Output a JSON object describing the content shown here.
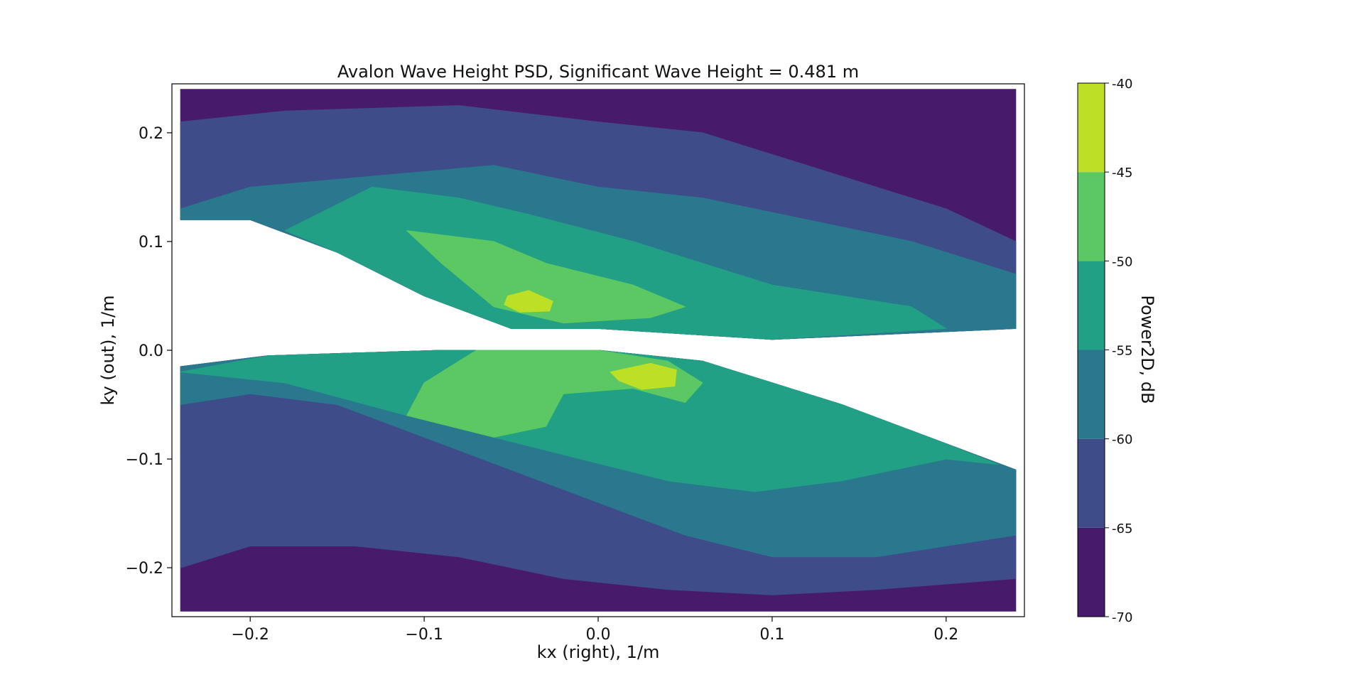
{
  "chart_data": {
    "type": "contourf",
    "title": "Avalon Wave Height PSD, Significant Wave Height = 0.481 m",
    "xlabel": "kx (right), 1/m",
    "ylabel": "ky (out), 1/m",
    "xlim": [
      -0.245,
      0.245
    ],
    "ylim": [
      -0.245,
      0.245
    ],
    "xticks": [
      -0.2,
      -0.1,
      0.0,
      0.1,
      0.2
    ],
    "xtick_labels": [
      "−0.2",
      "−0.1",
      "0.0",
      "0.1",
      "0.2"
    ],
    "yticks": [
      -0.2,
      -0.1,
      0.0,
      0.1,
      0.2
    ],
    "ytick_labels": [
      "−0.2",
      "−0.1",
      "0.0",
      "0.1",
      "0.2"
    ],
    "colorbar": {
      "label": "Power2D, dB",
      "levels": [
        -70,
        -65,
        -60,
        -55,
        -50,
        -45,
        -40
      ],
      "tick_labels": [
        "-70",
        "-65",
        "-60",
        "-55",
        "-50",
        "-45",
        "-40"
      ],
      "colors": [
        "#481a6c",
        "#3e4c8a",
        "#2a788e",
        "#22a085",
        "#5cc863",
        "#bddf26"
      ]
    },
    "regions": [
      {
        "name": "upper-lobe",
        "level": -70,
        "points": [
          [
            -0.24,
            0.24
          ],
          [
            0.24,
            0.24
          ],
          [
            0.24,
            0.02
          ],
          [
            0.1,
            0.01
          ],
          [
            0.0,
            0.02
          ],
          [
            -0.05,
            0.02
          ],
          [
            -0.1,
            0.05
          ],
          [
            -0.15,
            0.09
          ],
          [
            -0.2,
            0.12
          ],
          [
            -0.24,
            0.12
          ]
        ]
      },
      {
        "name": "upper-lobe",
        "level": -65,
        "points": [
          [
            -0.24,
            0.21
          ],
          [
            -0.18,
            0.22
          ],
          [
            -0.08,
            0.225
          ],
          [
            0.0,
            0.21
          ],
          [
            0.06,
            0.2
          ],
          [
            0.1,
            0.18
          ],
          [
            0.14,
            0.16
          ],
          [
            0.2,
            0.13
          ],
          [
            0.24,
            0.1
          ],
          [
            0.24,
            0.02
          ],
          [
            0.1,
            0.01
          ],
          [
            0.0,
            0.02
          ],
          [
            -0.05,
            0.02
          ],
          [
            -0.1,
            0.05
          ],
          [
            -0.15,
            0.09
          ],
          [
            -0.2,
            0.12
          ],
          [
            -0.24,
            0.12
          ]
        ]
      },
      {
        "name": "upper-lobe",
        "level": -60,
        "points": [
          [
            -0.24,
            0.13
          ],
          [
            -0.2,
            0.15
          ],
          [
            -0.13,
            0.16
          ],
          [
            -0.06,
            0.17
          ],
          [
            0.0,
            0.15
          ],
          [
            0.06,
            0.14
          ],
          [
            0.12,
            0.12
          ],
          [
            0.18,
            0.1
          ],
          [
            0.24,
            0.07
          ],
          [
            0.24,
            0.02
          ],
          [
            0.1,
            0.01
          ],
          [
            0.0,
            0.02
          ],
          [
            -0.05,
            0.02
          ],
          [
            -0.1,
            0.05
          ],
          [
            -0.15,
            0.09
          ],
          [
            -0.2,
            0.12
          ],
          [
            -0.24,
            0.12
          ]
        ]
      },
      {
        "name": "upper-lobe",
        "level": -55,
        "points": [
          [
            -0.18,
            0.11
          ],
          [
            -0.13,
            0.15
          ],
          [
            -0.08,
            0.14
          ],
          [
            -0.04,
            0.125
          ],
          [
            0.02,
            0.1
          ],
          [
            0.06,
            0.08
          ],
          [
            0.1,
            0.06
          ],
          [
            0.14,
            0.05
          ],
          [
            0.18,
            0.04
          ],
          [
            0.2,
            0.02
          ],
          [
            0.1,
            0.01
          ],
          [
            0.0,
            0.02
          ],
          [
            -0.05,
            0.02
          ],
          [
            -0.1,
            0.05
          ],
          [
            -0.15,
            0.09
          ]
        ]
      },
      {
        "name": "upper-lobe",
        "level": -50,
        "points": [
          [
            -0.11,
            0.11
          ],
          [
            -0.06,
            0.1
          ],
          [
            -0.03,
            0.08
          ],
          [
            0.02,
            0.06
          ],
          [
            0.05,
            0.04
          ],
          [
            0.03,
            0.03
          ],
          [
            -0.02,
            0.025
          ],
          [
            -0.06,
            0.04
          ],
          [
            -0.09,
            0.08
          ]
        ]
      },
      {
        "name": "upper-lobe",
        "level": -45,
        "points": [
          [
            -0.052,
            0.05
          ],
          [
            -0.04,
            0.055
          ],
          [
            -0.026,
            0.045
          ],
          [
            -0.028,
            0.036
          ],
          [
            -0.045,
            0.035
          ],
          [
            -0.054,
            0.042
          ]
        ]
      },
      {
        "name": "lower-lobe",
        "level": -70,
        "points": [
          [
            -0.24,
            -0.24
          ],
          [
            0.24,
            -0.24
          ],
          [
            0.24,
            -0.11
          ],
          [
            0.19,
            -0.08
          ],
          [
            0.14,
            -0.05
          ],
          [
            0.1,
            -0.03
          ],
          [
            0.06,
            -0.01
          ],
          [
            0.0,
            0.0
          ],
          [
            -0.09,
            0.0
          ],
          [
            -0.19,
            -0.005
          ],
          [
            -0.24,
            -0.015
          ]
        ]
      },
      {
        "name": "lower-lobe",
        "level": -65,
        "points": [
          [
            -0.24,
            -0.2
          ],
          [
            -0.2,
            -0.18
          ],
          [
            -0.14,
            -0.18
          ],
          [
            -0.08,
            -0.19
          ],
          [
            -0.02,
            -0.21
          ],
          [
            0.04,
            -0.22
          ],
          [
            0.1,
            -0.225
          ],
          [
            0.16,
            -0.22
          ],
          [
            0.24,
            -0.21
          ],
          [
            0.24,
            -0.11
          ],
          [
            0.19,
            -0.08
          ],
          [
            0.14,
            -0.05
          ],
          [
            0.1,
            -0.03
          ],
          [
            0.06,
            -0.01
          ],
          [
            0.0,
            0.0
          ],
          [
            -0.09,
            0.0
          ],
          [
            -0.19,
            -0.005
          ],
          [
            -0.24,
            -0.015
          ]
        ]
      },
      {
        "name": "lower-lobe",
        "level": -60,
        "points": [
          [
            -0.24,
            -0.05
          ],
          [
            -0.2,
            -0.04
          ],
          [
            -0.15,
            -0.05
          ],
          [
            -0.1,
            -0.08
          ],
          [
            -0.05,
            -0.11
          ],
          [
            0.0,
            -0.14
          ],
          [
            0.05,
            -0.17
          ],
          [
            0.1,
            -0.19
          ],
          [
            0.16,
            -0.19
          ],
          [
            0.24,
            -0.17
          ],
          [
            0.24,
            -0.11
          ],
          [
            0.19,
            -0.08
          ],
          [
            0.14,
            -0.05
          ],
          [
            0.1,
            -0.03
          ],
          [
            0.06,
            -0.01
          ],
          [
            0.0,
            0.0
          ],
          [
            -0.09,
            0.0
          ],
          [
            -0.19,
            -0.005
          ],
          [
            -0.24,
            -0.015
          ]
        ]
      },
      {
        "name": "lower-lobe",
        "level": -55,
        "points": [
          [
            -0.24,
            -0.02
          ],
          [
            -0.18,
            -0.03
          ],
          [
            -0.11,
            -0.06
          ],
          [
            -0.06,
            -0.08
          ],
          [
            -0.01,
            -0.1
          ],
          [
            0.04,
            -0.12
          ],
          [
            0.09,
            -0.13
          ],
          [
            0.14,
            -0.12
          ],
          [
            0.2,
            -0.1
          ],
          [
            0.23,
            -0.105
          ],
          [
            0.19,
            -0.08
          ],
          [
            0.14,
            -0.05
          ],
          [
            0.1,
            -0.03
          ],
          [
            0.06,
            -0.01
          ],
          [
            0.0,
            0.0
          ],
          [
            -0.09,
            0.0
          ],
          [
            -0.19,
            -0.005
          ]
        ]
      },
      {
        "name": "lower-lobe",
        "level": -50,
        "points": [
          [
            -0.11,
            -0.06
          ],
          [
            -0.06,
            -0.08
          ],
          [
            -0.03,
            -0.07
          ],
          [
            -0.02,
            -0.04
          ],
          [
            0.02,
            -0.035
          ],
          [
            0.05,
            -0.048
          ],
          [
            0.06,
            -0.03
          ],
          [
            0.04,
            -0.01
          ],
          [
            0.0,
            0.0
          ],
          [
            -0.07,
            0.0
          ],
          [
            -0.1,
            -0.03
          ]
        ]
      },
      {
        "name": "lower-lobe",
        "level": -45,
        "points": [
          [
            0.007,
            -0.02
          ],
          [
            0.03,
            -0.012
          ],
          [
            0.045,
            -0.018
          ],
          [
            0.044,
            -0.033
          ],
          [
            0.025,
            -0.036
          ],
          [
            0.012,
            -0.028
          ]
        ]
      }
    ]
  }
}
